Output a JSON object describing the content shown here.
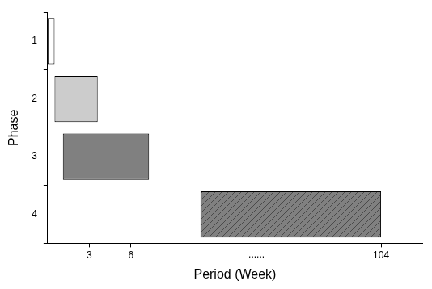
{
  "chart_data": {
    "type": "bar",
    "orientation": "horizontal",
    "x_label": "Period (Week)",
    "y_label": "Phase",
    "categories": [
      "1",
      "2",
      "3",
      "4"
    ],
    "values": [
      [
        0,
        0.5
      ],
      [
        0.5,
        3.6
      ],
      [
        1.1,
        7.3
      ],
      [
        11,
        104
      ]
    ],
    "colors": [
      "#ffffff",
      "#cccccc",
      "#808080",
      "#808080"
    ],
    "xlim": [
      0,
      105.5
    ],
    "xticks": [
      3,
      6,
      104
    ],
    "x_break": {
      "from": 12,
      "to": 101,
      "label": "......"
    },
    "grid": false
  }
}
